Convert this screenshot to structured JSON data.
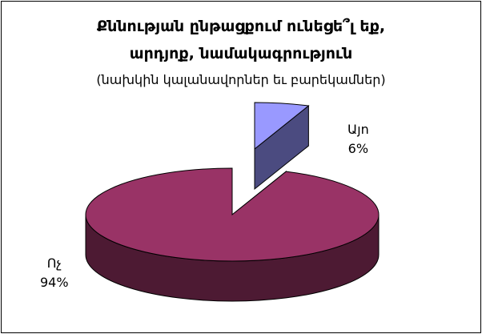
{
  "chart_data": {
    "type": "pie",
    "title_line1": "Քննության ընթացքում ունեցե՞լ եք,",
    "title_line2": "արդյոք, նամակագրություն",
    "subtitle": "(նախկին կալանավորներ եւ բարեկամներ)",
    "slices": [
      {
        "label": "Այո",
        "value": 6,
        "value_label": "6%",
        "color": "#9999ff",
        "side_color": "#4b4b80"
      },
      {
        "label": "Ոչ",
        "value": 94,
        "value_label": "94%",
        "color": "#993366",
        "side_color": "#4d1a33"
      }
    ],
    "three_d": true
  }
}
